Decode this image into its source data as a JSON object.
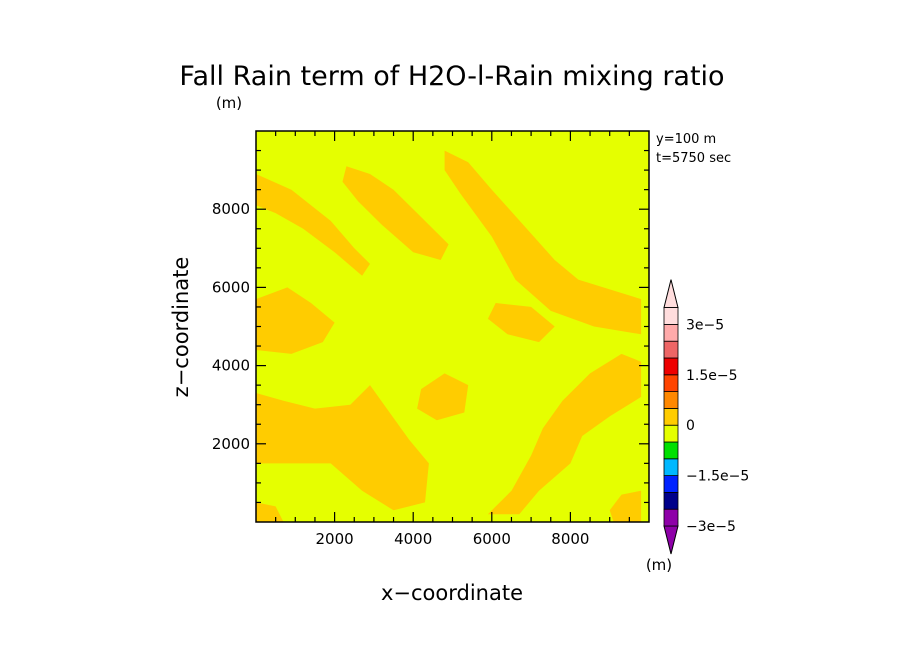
{
  "chart_data": {
    "type": "heatmap",
    "title": "Fall Rain term of H2O-l-Rain mixing ratio",
    "units": "(m)",
    "colorbar_units": "(m)",
    "annotation": [
      "y=100 m",
      "t=5750 sec"
    ],
    "xlabel": "x−coordinate",
    "ylabel": "z−coordinate",
    "xlim": [
      0,
      10000
    ],
    "ylim": [
      0,
      10000
    ],
    "x_ticks": [
      2000,
      4000,
      6000,
      8000
    ],
    "x_tick_labels": [
      "2000",
      "4000",
      "6000",
      "8000"
    ],
    "y_ticks": [
      2000,
      4000,
      6000,
      8000
    ],
    "y_tick_labels": [
      "2000",
      "4000",
      "6000",
      "8000"
    ],
    "background_color": "#e5ff00",
    "field_color": "#ffcc00",
    "contour_regions": [
      {
        "name": "upper-left band",
        "value_range": "0 to 5e-6",
        "points": [
          [
            0,
            8900
          ],
          [
            900,
            8500
          ],
          [
            1900,
            7700
          ],
          [
            2500,
            7000
          ],
          [
            2900,
            6600
          ],
          [
            2700,
            6300
          ],
          [
            2000,
            6900
          ],
          [
            1200,
            7500
          ],
          [
            500,
            7900
          ],
          [
            0,
            8100
          ]
        ]
      },
      {
        "name": "upper-center band",
        "value_range": "0 to 5e-6",
        "points": [
          [
            2300,
            9100
          ],
          [
            2900,
            8900
          ],
          [
            3500,
            8500
          ],
          [
            4300,
            7700
          ],
          [
            4900,
            7100
          ],
          [
            4700,
            6700
          ],
          [
            4000,
            6900
          ],
          [
            3200,
            7600
          ],
          [
            2600,
            8200
          ],
          [
            2200,
            8700
          ]
        ]
      },
      {
        "name": "upper-right band",
        "value_range": "0 to 5e-6",
        "points": [
          [
            4800,
            9500
          ],
          [
            5400,
            9200
          ],
          [
            6000,
            8500
          ],
          [
            6800,
            7600
          ],
          [
            7600,
            6700
          ],
          [
            8200,
            6200
          ],
          [
            9800,
            5700
          ],
          [
            9800,
            4800
          ],
          [
            8600,
            5000
          ],
          [
            7500,
            5400
          ],
          [
            6600,
            6200
          ],
          [
            6000,
            7300
          ],
          [
            5200,
            8400
          ],
          [
            4800,
            9000
          ]
        ]
      },
      {
        "name": "center-left patch",
        "value_range": "0 to 5e-6",
        "points": [
          [
            0,
            5700
          ],
          [
            800,
            6000
          ],
          [
            1400,
            5600
          ],
          [
            2000,
            5100
          ],
          [
            1700,
            4600
          ],
          [
            900,
            4300
          ],
          [
            0,
            4400
          ]
        ]
      },
      {
        "name": "center-right patch",
        "value_range": "0 to 5e-6",
        "points": [
          [
            6100,
            5600
          ],
          [
            7000,
            5500
          ],
          [
            7600,
            5000
          ],
          [
            7200,
            4600
          ],
          [
            6400,
            4800
          ],
          [
            5900,
            5200
          ]
        ]
      },
      {
        "name": "lower-left band",
        "value_range": "0 to 5e-6",
        "points": [
          [
            0,
            3300
          ],
          [
            700,
            3100
          ],
          [
            1500,
            2900
          ],
          [
            2400,
            3000
          ],
          [
            2900,
            3500
          ],
          [
            3400,
            2800
          ],
          [
            3900,
            2100
          ],
          [
            4400,
            1500
          ],
          [
            4300,
            500
          ],
          [
            3500,
            300
          ],
          [
            2700,
            800
          ],
          [
            1900,
            1500
          ],
          [
            1000,
            1500
          ],
          [
            0,
            1500
          ]
        ]
      },
      {
        "name": "lower-center patch",
        "value_range": "0 to 5e-6",
        "points": [
          [
            4200,
            3400
          ],
          [
            4800,
            3800
          ],
          [
            5400,
            3500
          ],
          [
            5300,
            2800
          ],
          [
            4600,
            2600
          ],
          [
            4100,
            2900
          ]
        ]
      },
      {
        "name": "lower-right band",
        "value_range": "0 to 5e-6",
        "points": [
          [
            5900,
            200
          ],
          [
            6500,
            800
          ],
          [
            7000,
            1700
          ],
          [
            7300,
            2400
          ],
          [
            7800,
            3100
          ],
          [
            8500,
            3800
          ],
          [
            9300,
            4300
          ],
          [
            9800,
            4100
          ],
          [
            9800,
            3200
          ],
          [
            9000,
            2700
          ],
          [
            8300,
            2200
          ],
          [
            8000,
            1500
          ],
          [
            7200,
            800
          ],
          [
            6700,
            200
          ]
        ]
      },
      {
        "name": "bottom-left patch",
        "value_range": "0 to 5e-6",
        "points": [
          [
            0,
            0
          ],
          [
            700,
            0
          ],
          [
            500,
            400
          ],
          [
            0,
            500
          ]
        ]
      },
      {
        "name": "bottom-right patch",
        "value_range": "0 to 5e-6",
        "points": [
          [
            9100,
            0
          ],
          [
            9800,
            0
          ],
          [
            9800,
            800
          ],
          [
            9300,
            700
          ],
          [
            9000,
            300
          ]
        ]
      }
    ],
    "colorbar": {
      "labels": [
        "3e−5",
        "1.5e−5",
        "0",
        "−1.5e−5",
        "−3e−5"
      ],
      "colors": [
        "#8e00a8",
        "#00008a",
        "#0022ff",
        "#00b8ff",
        "#00e000",
        "#e5ff00",
        "#ffcc00",
        "#ff8800",
        "#ff4400",
        "#ee0000",
        "#ee6666",
        "#ffaaaa",
        "#ffdddd"
      ]
    }
  }
}
